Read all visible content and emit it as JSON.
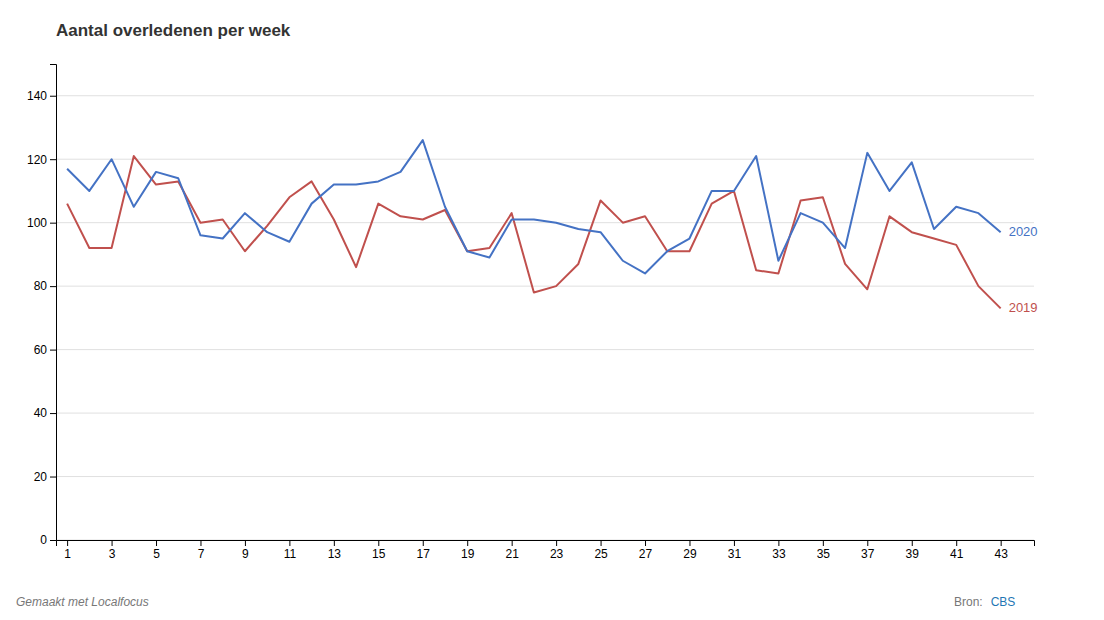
{
  "chart_data": {
    "type": "line",
    "title": "Aantal overledenen per week",
    "x": [
      1,
      2,
      3,
      4,
      5,
      6,
      7,
      8,
      9,
      10,
      11,
      12,
      13,
      14,
      15,
      16,
      17,
      18,
      19,
      20,
      21,
      22,
      23,
      24,
      25,
      26,
      27,
      28,
      29,
      30,
      31,
      32,
      33,
      34,
      35,
      36,
      37,
      38,
      39,
      40,
      41,
      42,
      43
    ],
    "series": [
      {
        "name": "2019",
        "color": "#c0504d",
        "values": [
          106,
          92,
          92,
          121,
          112,
          113,
          100,
          101,
          91,
          99,
          108,
          113,
          101,
          86,
          106,
          102,
          101,
          104,
          91,
          92,
          103,
          78,
          80,
          87,
          107,
          100,
          102,
          91,
          91,
          106,
          110,
          85,
          84,
          107,
          108,
          87,
          79,
          102,
          97,
          95,
          93,
          80,
          73
        ]
      },
      {
        "name": "2020",
        "color": "#4472c4",
        "values": [
          117,
          110,
          120,
          105,
          116,
          114,
          96,
          95,
          103,
          97,
          94,
          106,
          112,
          112,
          113,
          116,
          126,
          105,
          91,
          89,
          101,
          101,
          100,
          98,
          97,
          88,
          84,
          91,
          95,
          110,
          110,
          121,
          88,
          103,
          100,
          92,
          122,
          110,
          119,
          98,
          105,
          103,
          97
        ]
      }
    ],
    "xlim": [
      0.5,
      44.5
    ],
    "xticks": [
      1,
      3,
      5,
      7,
      9,
      11,
      13,
      15,
      17,
      19,
      21,
      23,
      25,
      27,
      29,
      31,
      33,
      35,
      37,
      39,
      41,
      43
    ],
    "ylim": [
      0,
      150
    ],
    "yticks": [
      0,
      20,
      40,
      60,
      80,
      100,
      120,
      140
    ],
    "grid": true,
    "annotations": [
      {
        "text": "Gemaakt met Localfocus"
      },
      {
        "text": "Bron:"
      },
      {
        "text": "CBS"
      }
    ]
  }
}
